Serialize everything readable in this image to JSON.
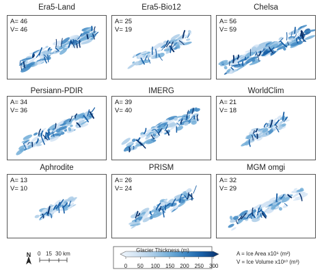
{
  "panels": [
    {
      "title": "Era5-Land",
      "a": "A= 46",
      "v": "V= 46",
      "extent": 0.85,
      "density": 0.75
    },
    {
      "title": "Era5-Bio12",
      "a": "A= 25",
      "v": "V= 19",
      "extent": 0.62,
      "density": 0.4
    },
    {
      "title": "Chelsa",
      "a": "A= 56",
      "v": "V= 59",
      "extent": 0.95,
      "density": 0.95
    },
    {
      "title": "Persiann-PDIR",
      "a": "A= 34",
      "v": "V= 36",
      "extent": 0.78,
      "density": 0.6
    },
    {
      "title": "IMERG",
      "a": "A= 39",
      "v": "V= 40",
      "extent": 0.8,
      "density": 0.65
    },
    {
      "title": "WorldClim",
      "a": "A= 21",
      "v": "V= 18",
      "extent": 0.45,
      "density": 0.35
    },
    {
      "title": "Aphrodite",
      "a": "A= 13",
      "v": "V= 10",
      "extent": 0.4,
      "density": 0.2
    },
    {
      "title": "PRISM",
      "a": "A= 26",
      "v": "V= 24",
      "extent": 0.68,
      "density": 0.45
    },
    {
      "title": "MGM omgi",
      "a": "A= 32",
      "v": "V= 29",
      "extent": 0.78,
      "density": 0.55
    }
  ],
  "north_label": "N",
  "scale": {
    "ticks": [
      "0",
      "15",
      "30 km"
    ]
  },
  "colorbar": {
    "title": "Glacier Thickness (m)",
    "ticks": [
      "0",
      "50",
      "100",
      "150",
      "200",
      "250",
      "300"
    ],
    "colors": [
      "#f0f6fc",
      "#d3e4f4",
      "#abcde8",
      "#73aed8",
      "#3d86c2",
      "#185fa6",
      "#08306b"
    ]
  },
  "definitions": {
    "area": "A = Ice Area x10⁶ (m²)",
    "volume": "V = Ice Volume x10¹⁰ (m³)"
  }
}
